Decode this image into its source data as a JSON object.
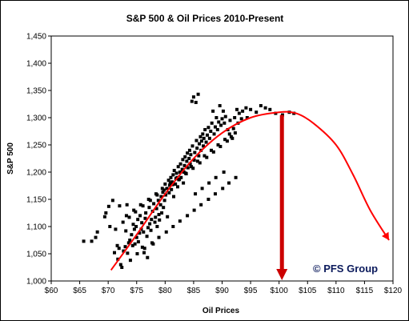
{
  "chart_data": {
    "type": "scatter",
    "title": "S&P 500 & Oil Prices 2010-Present",
    "xlabel": "Oil Prices",
    "ylabel": "S&P 500",
    "xlim": [
      60,
      120
    ],
    "ylim": [
      1000,
      1450
    ],
    "x_ticks": [
      60,
      65,
      70,
      75,
      80,
      85,
      90,
      95,
      100,
      105,
      110,
      115,
      120
    ],
    "x_tick_labels": [
      "$60",
      "$65",
      "$70",
      "$75",
      "$80",
      "$85",
      "$90",
      "$95",
      "$100",
      "$105",
      "$110",
      "$115",
      "$120"
    ],
    "y_ticks": [
      1000,
      1050,
      1100,
      1150,
      1200,
      1250,
      1300,
      1350,
      1400,
      1450
    ],
    "y_tick_labels": [
      "1,000",
      "1,050",
      "1,100",
      "1,150",
      "1,200",
      "1,250",
      "1,300",
      "1,350",
      "1,400",
      "1,450"
    ],
    "grid": false,
    "series": [
      {
        "color": "#000000",
        "marker": "square",
        "points": [
          [
            65.7,
            1073
          ],
          [
            67.1,
            1073
          ],
          [
            67.8,
            1080
          ],
          [
            68.1,
            1090
          ],
          [
            69.4,
            1118
          ],
          [
            69.6,
            1125
          ],
          [
            70.1,
            1137
          ],
          [
            70.8,
            1148
          ],
          [
            71.1,
            1052
          ],
          [
            71.6,
            1065
          ],
          [
            71.7,
            1040
          ],
          [
            71.9,
            1060
          ],
          [
            72.0,
            1138
          ],
          [
            72.2,
            1030
          ],
          [
            72.4,
            1025
          ],
          [
            72.7,
            1055
          ],
          [
            73.0,
            1063
          ],
          [
            73.1,
            1092
          ],
          [
            73.3,
            1140
          ],
          [
            73.4,
            1051
          ],
          [
            73.6,
            1070
          ],
          [
            73.8,
            1075
          ],
          [
            73.9,
            1038
          ],
          [
            74.1,
            1085
          ],
          [
            74.3,
            1065
          ],
          [
            74.4,
            1104
          ],
          [
            74.6,
            1095
          ],
          [
            74.7,
            1068
          ],
          [
            74.9,
            1100
          ],
          [
            75.0,
            1080
          ],
          [
            75.2,
            1113
          ],
          [
            75.3,
            1072
          ],
          [
            75.5,
            1088
          ],
          [
            75.6,
            1120
          ],
          [
            75.8,
            1095
          ],
          [
            75.9,
            1107
          ],
          [
            76.0,
            1062
          ],
          [
            76.2,
            1090
          ],
          [
            76.3,
            1052
          ],
          [
            76.5,
            1115
          ],
          [
            76.6,
            1125
          ],
          [
            76.8,
            1082
          ],
          [
            76.9,
            1043
          ],
          [
            77.0,
            1098
          ],
          [
            77.2,
            1135
          ],
          [
            77.3,
            1105
          ],
          [
            77.5,
            1093
          ],
          [
            77.6,
            1113
          ],
          [
            77.8,
            1128
          ],
          [
            77.9,
            1068
          ],
          [
            78.0,
            1142
          ],
          [
            78.2,
            1108
          ],
          [
            78.3,
            1117
          ],
          [
            78.5,
            1133
          ],
          [
            78.6,
            1100
          ],
          [
            78.8,
            1148
          ],
          [
            78.9,
            1122
          ],
          [
            79.0,
            1112
          ],
          [
            79.2,
            1140
          ],
          [
            79.3,
            1155
          ],
          [
            79.4,
            1125
          ],
          [
            79.6,
            1163
          ],
          [
            79.7,
            1135
          ],
          [
            79.9,
            1148
          ],
          [
            80.0,
            1178
          ],
          [
            80.1,
            1158
          ],
          [
            80.3,
            1170
          ],
          [
            80.4,
            1118
          ],
          [
            80.6,
            1185
          ],
          [
            80.7,
            1162
          ],
          [
            80.8,
            1176
          ],
          [
            81.0,
            1190
          ],
          [
            81.1,
            1168
          ],
          [
            81.2,
            1182
          ],
          [
            81.4,
            1195
          ],
          [
            81.5,
            1155
          ],
          [
            81.6,
            1203
          ],
          [
            81.8,
            1178
          ],
          [
            81.9,
            1188
          ],
          [
            82.0,
            1198
          ],
          [
            82.2,
            1173
          ],
          [
            82.3,
            1210
          ],
          [
            82.4,
            1186
          ],
          [
            82.6,
            1200
          ],
          [
            82.7,
            1215
          ],
          [
            82.8,
            1190
          ],
          [
            83.0,
            1205
          ],
          [
            83.1,
            1223
          ],
          [
            83.2,
            1180
          ],
          [
            83.4,
            1212
          ],
          [
            83.5,
            1228
          ],
          [
            83.6,
            1198
          ],
          [
            83.8,
            1220
          ],
          [
            83.9,
            1235
          ],
          [
            84.0,
            1208
          ],
          [
            84.2,
            1225
          ],
          [
            84.3,
            1240
          ],
          [
            84.4,
            1215
          ],
          [
            84.5,
            1232
          ],
          [
            84.7,
            1330
          ],
          [
            84.8,
            1248
          ],
          [
            85.0,
            1338
          ],
          [
            85.1,
            1222
          ],
          [
            85.2,
            1236
          ],
          [
            85.4,
            1328
          ],
          [
            85.5,
            1258
          ],
          [
            85.6,
            1244
          ],
          [
            85.8,
            1343
          ],
          [
            85.9,
            1230
          ],
          [
            86.0,
            1252
          ],
          [
            86.2,
            1265
          ],
          [
            86.3,
            1240
          ],
          [
            86.4,
            1257
          ],
          [
            86.6,
            1270
          ],
          [
            86.7,
            1248
          ],
          [
            86.8,
            1262
          ],
          [
            87.0,
            1278
          ],
          [
            87.2,
            1255
          ],
          [
            87.4,
            1268
          ],
          [
            87.6,
            1282
          ],
          [
            87.8,
            1262
          ],
          [
            88.0,
            1275
          ],
          [
            88.2,
            1290
          ],
          [
            88.4,
            1312
          ],
          [
            88.6,
            1270
          ],
          [
            88.8,
            1283
          ],
          [
            89.0,
            1300
          ],
          [
            89.2,
            1278
          ],
          [
            89.4,
            1292
          ],
          [
            89.6,
            1322
          ],
          [
            89.8,
            1286
          ],
          [
            90.0,
            1298
          ],
          [
            90.2,
            1312
          ],
          [
            90.4,
            1290
          ],
          [
            90.6,
            1302
          ],
          [
            91.0,
            1278
          ],
          [
            91.4,
            1295
          ],
          [
            91.8,
            1262
          ],
          [
            92.2,
            1300
          ],
          [
            92.6,
            1315
          ],
          [
            93.0,
            1308
          ],
          [
            93.6,
            1312
          ],
          [
            94.2,
            1318
          ],
          [
            95.0,
            1315
          ],
          [
            96.0,
            1310
          ],
          [
            96.8,
            1322
          ],
          [
            97.6,
            1318
          ],
          [
            98.4,
            1315
          ],
          [
            99.4,
            1308
          ],
          [
            100.6,
            1305
          ],
          [
            101.8,
            1310
          ],
          [
            102.6,
            1308
          ],
          [
            70.3,
            1100
          ],
          [
            71.3,
            1095
          ],
          [
            72.6,
            1108
          ],
          [
            73.7,
            1117
          ],
          [
            74.8,
            1127
          ],
          [
            76.1,
            1138
          ],
          [
            77.4,
            1148
          ],
          [
            78.6,
            1158
          ],
          [
            79.8,
            1167
          ],
          [
            81.3,
            1177
          ],
          [
            82.5,
            1187
          ],
          [
            83.7,
            1197
          ],
          [
            84.9,
            1207
          ],
          [
            86.1,
            1217
          ],
          [
            87.3,
            1227
          ],
          [
            88.5,
            1237
          ],
          [
            89.7,
            1247
          ],
          [
            90.9,
            1257
          ],
          [
            91.6,
            1265
          ],
          [
            92.3,
            1272
          ],
          [
            73.2,
            1120
          ],
          [
            74.5,
            1130
          ],
          [
            75.7,
            1140
          ],
          [
            77.1,
            1150
          ],
          [
            78.4,
            1160
          ],
          [
            79.5,
            1170
          ],
          [
            80.9,
            1180
          ],
          [
            82.1,
            1190
          ],
          [
            83.3,
            1200
          ],
          [
            84.6,
            1210
          ],
          [
            85.7,
            1220
          ],
          [
            86.9,
            1230
          ],
          [
            88.1,
            1240
          ],
          [
            89.3,
            1250
          ],
          [
            90.5,
            1260
          ],
          [
            91.3,
            1270
          ],
          [
            92.0,
            1280
          ],
          [
            92.8,
            1290
          ],
          [
            93.4,
            1298
          ],
          [
            94.4,
            1300
          ],
          [
            75.1,
            1050
          ],
          [
            76.4,
            1060
          ],
          [
            77.7,
            1070
          ],
          [
            78.9,
            1080
          ],
          [
            80.2,
            1090
          ],
          [
            81.4,
            1100
          ],
          [
            82.6,
            1110
          ],
          [
            83.9,
            1120
          ],
          [
            85.1,
            1130
          ],
          [
            86.3,
            1140
          ],
          [
            87.6,
            1150
          ],
          [
            88.8,
            1160
          ],
          [
            90.1,
            1170
          ],
          [
            91.2,
            1180
          ],
          [
            92.4,
            1190
          ],
          [
            85.3,
            1160
          ],
          [
            86.5,
            1170
          ],
          [
            87.7,
            1180
          ],
          [
            88.9,
            1190
          ],
          [
            90.3,
            1200
          ]
        ]
      },
      {
        "type": "trend-curve",
        "color": "#ff0000",
        "points": [
          [
            70.5,
            1020
          ],
          [
            75,
            1085
          ],
          [
            80,
            1160
          ],
          [
            85,
            1225
          ],
          [
            90,
            1272
          ],
          [
            95,
            1300
          ],
          [
            100,
            1310
          ],
          [
            103,
            1308
          ],
          [
            106,
            1290
          ],
          [
            110,
            1250
          ],
          [
            113,
            1195
          ],
          [
            116,
            1130
          ],
          [
            119.3,
            1075
          ]
        ]
      }
    ],
    "annotations": [
      {
        "type": "vertical-arrow",
        "x": 100.5,
        "y_from": 1305,
        "y_to": 1000,
        "color": "#cc0000"
      }
    ]
  },
  "watermark": {
    "text": "© PFS Group",
    "color": "#0b1a5c"
  }
}
